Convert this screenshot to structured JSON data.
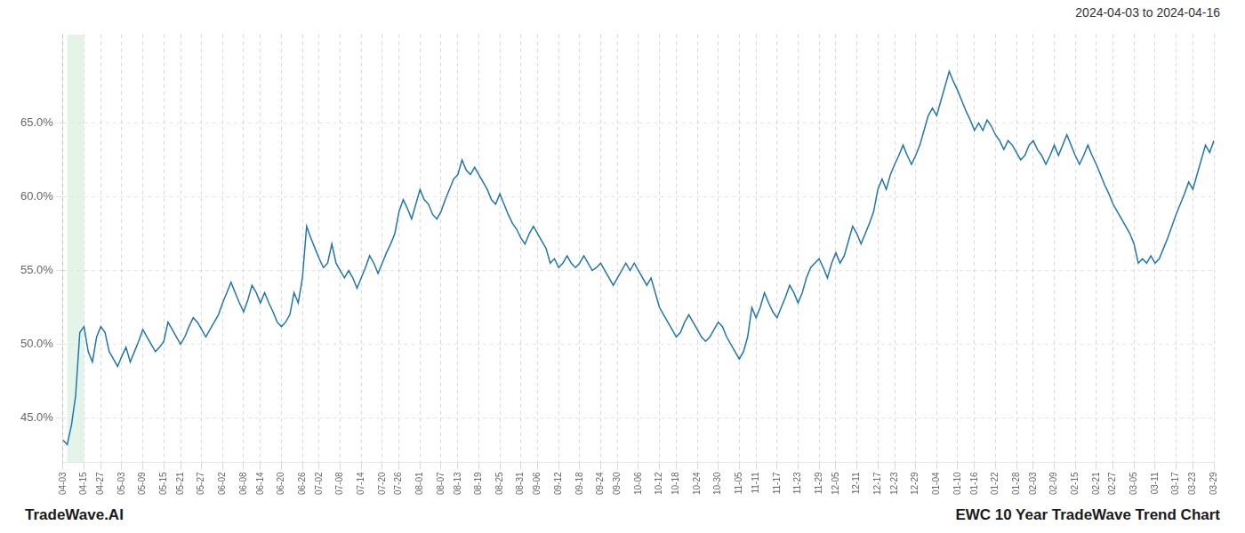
{
  "chart_data": {
    "type": "line",
    "title": "EWC 10 Year TradeWave Trend Chart",
    "subtitle": "2024-04-03 to 2024-04-16",
    "annotations": [
      "TradeWave.AI"
    ],
    "categories": [
      "04-03",
      null,
      null,
      null,
      null,
      "04-15",
      null,
      null,
      null,
      "04-27",
      null,
      null,
      null,
      null,
      "05-03",
      null,
      null,
      null,
      null,
      "05-09",
      null,
      null,
      null,
      null,
      "05-15",
      null,
      null,
      null,
      "05-21",
      null,
      null,
      null,
      null,
      "05-27",
      null,
      null,
      null,
      null,
      "06-02",
      null,
      null,
      null,
      null,
      "06-08",
      null,
      null,
      null,
      "06-14",
      null,
      null,
      null,
      null,
      "06-20",
      null,
      null,
      null,
      null,
      "06-26",
      null,
      null,
      null,
      "07-02",
      null,
      null,
      null,
      null,
      "07-08",
      null,
      null,
      null,
      null,
      "07-14",
      null,
      null,
      null,
      null,
      "07-20",
      null,
      null,
      null,
      "07-26",
      null,
      null,
      null,
      null,
      "08-01",
      null,
      null,
      null,
      null,
      "08-07",
      null,
      null,
      null,
      "08-13",
      null,
      null,
      null,
      null,
      "08-19",
      null,
      null,
      null,
      null,
      "08-25",
      null,
      null,
      null,
      null,
      "08-31",
      null,
      null,
      null,
      "09-06",
      null,
      null,
      null,
      null,
      "09-12",
      null,
      null,
      null,
      null,
      "09-18",
      null,
      null,
      null,
      null,
      "09-24",
      null,
      null,
      null,
      "09-30",
      null,
      null,
      null,
      null,
      "10-06",
      null,
      null,
      null,
      null,
      "10-12",
      null,
      null,
      null,
      "10-18",
      null,
      null,
      null,
      null,
      "10-24",
      null,
      null,
      null,
      null,
      "10-30",
      null,
      null,
      null,
      null,
      "11-05",
      null,
      null,
      null,
      "11-11",
      null,
      null,
      null,
      null,
      "11-17",
      null,
      null,
      null,
      null,
      "11-23",
      null,
      null,
      null,
      null,
      "11-29",
      null,
      null,
      null,
      "12-05",
      null,
      null,
      null,
      null,
      "12-11",
      null,
      null,
      null,
      null,
      "12-17",
      null,
      null,
      null,
      "12-23",
      null,
      null,
      null,
      null,
      "12-29",
      null,
      null,
      null,
      null,
      "01-04",
      null,
      null,
      null,
      null,
      "01-10",
      null,
      null,
      null,
      "01-16",
      null,
      null,
      null,
      null,
      "01-22",
      null,
      null,
      null,
      null,
      "01-28",
      null,
      null,
      null,
      "02-03",
      null,
      null,
      null,
      null,
      "02-09",
      null,
      null,
      null,
      null,
      "02-15",
      null,
      null,
      null,
      null,
      "02-21",
      null,
      null,
      null,
      "02-27",
      null,
      null,
      null,
      null,
      "03-05",
      null,
      null,
      null,
      null,
      "03-11",
      null,
      null,
      null,
      null,
      "03-17",
      null,
      null,
      null,
      "03-23",
      null,
      null,
      null,
      null,
      "03-29"
    ],
    "values": [
      43.5,
      43.2,
      44.5,
      46.5,
      50.8,
      51.2,
      49.5,
      48.8,
      50.5,
      51.2,
      50.8,
      49.5,
      49.0,
      48.5,
      49.2,
      49.8,
      48.8,
      49.5,
      50.2,
      51.0,
      50.5,
      50.0,
      49.5,
      49.8,
      50.2,
      51.5,
      51.0,
      50.5,
      50.0,
      50.5,
      51.2,
      51.8,
      51.5,
      51.0,
      50.5,
      51.0,
      51.5,
      52.0,
      52.8,
      53.5,
      54.2,
      53.5,
      52.8,
      52.2,
      53.0,
      54.0,
      53.5,
      52.8,
      53.5,
      52.8,
      52.2,
      51.5,
      51.2,
      51.5,
      52.0,
      53.5,
      52.8,
      54.5,
      58.0,
      57.2,
      56.5,
      55.8,
      55.2,
      55.5,
      56.8,
      55.5,
      55.0,
      54.5,
      55.0,
      54.5,
      53.8,
      54.5,
      55.2,
      56.0,
      55.5,
      54.8,
      55.5,
      56.2,
      56.8,
      57.5,
      59.0,
      59.8,
      59.2,
      58.5,
      59.5,
      60.5,
      59.8,
      59.5,
      58.8,
      58.5,
      59.0,
      59.8,
      60.5,
      61.2,
      61.5,
      62.5,
      61.8,
      61.5,
      62.0,
      61.5,
      61.0,
      60.5,
      59.8,
      59.5,
      60.2,
      59.5,
      58.8,
      58.2,
      57.8,
      57.2,
      56.8,
      57.5,
      58.0,
      57.5,
      57.0,
      56.5,
      55.5,
      55.8,
      55.2,
      55.5,
      56.0,
      55.5,
      55.2,
      55.5,
      56.0,
      55.5,
      55.0,
      55.2,
      55.5,
      55.0,
      54.5,
      54.0,
      54.5,
      55.0,
      55.5,
      55.0,
      55.5,
      55.0,
      54.5,
      54.0,
      54.5,
      53.5,
      52.5,
      52.0,
      51.5,
      51.0,
      50.5,
      50.8,
      51.5,
      52.0,
      51.5,
      51.0,
      50.5,
      50.2,
      50.5,
      51.0,
      51.5,
      51.2,
      50.5,
      50.0,
      49.5,
      49.0,
      49.5,
      50.5,
      52.5,
      51.8,
      52.5,
      53.5,
      52.8,
      52.2,
      51.8,
      52.5,
      53.2,
      54.0,
      53.5,
      52.8,
      53.5,
      54.5,
      55.2,
      55.5,
      55.8,
      55.2,
      54.5,
      55.5,
      56.2,
      55.5,
      56.0,
      57.0,
      58.0,
      57.5,
      56.8,
      57.5,
      58.2,
      59.0,
      60.5,
      61.2,
      60.5,
      61.5,
      62.2,
      62.8,
      63.5,
      62.8,
      62.2,
      62.8,
      63.5,
      64.5,
      65.5,
      66.0,
      65.5,
      66.5,
      67.5,
      68.5,
      67.8,
      67.2,
      66.5,
      65.8,
      65.2,
      64.5,
      65.0,
      64.5,
      65.2,
      64.8,
      64.2,
      63.8,
      63.2,
      63.8,
      63.5,
      63.0,
      62.5,
      62.8,
      63.5,
      63.8,
      63.2,
      62.8,
      62.2,
      62.8,
      63.5,
      62.8,
      63.5,
      64.2,
      63.5,
      62.8,
      62.2,
      62.8,
      63.5,
      62.8,
      62.2,
      61.5,
      60.8,
      60.2,
      59.5,
      59.0,
      58.5,
      58.0,
      57.5,
      56.8,
      55.5,
      55.8,
      55.5,
      56.0,
      55.5,
      55.8,
      56.5,
      57.2,
      58.0,
      58.8,
      59.5,
      60.2,
      61.0,
      60.5,
      61.5,
      62.5,
      63.5,
      63.0,
      63.8
    ],
    "color": "#2176ae",
    "ylim": [
      42.0,
      71.0
    ],
    "yticks": [
      {
        "value": 45.0,
        "label": "45.0%"
      },
      {
        "value": 50.0,
        "label": "50.0%"
      },
      {
        "value": 55.0,
        "label": "55.0%"
      },
      {
        "value": 60.0,
        "label": "60.0%"
      },
      {
        "value": 65.0,
        "label": "65.0%"
      }
    ],
    "grid": true,
    "highlight": {
      "start": 1,
      "end": 5,
      "color": "#d4edda"
    }
  }
}
